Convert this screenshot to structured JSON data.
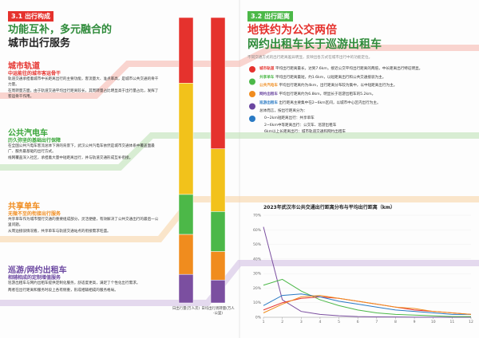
{
  "left": {
    "section_number": "3.1",
    "section_title": "出行构成",
    "headline": [
      "功能互补，多元融合的",
      "城市出行服务"
    ],
    "blocks": [
      {
        "title": "城市轨道",
        "subtitle": "中运能往的城市客运骨干",
        "paragraphs": [
          "轨道交通承担着城市中长距离出行的主要功能，客流量大、准点率高，是城市公共交通的骨干力量。",
          "在周转量方面，由于轨道交通平均出行距离较长，其周转量占比明显高于出行量占比，发挥了客运骨干作用。"
        ]
      },
      {
        "title": "公共汽电车",
        "subtitle": "历久弥坚的基础出行保障",
        "paragraphs": [
          "在全国公共汽电车客流总体下滑的背景下，武汉公共汽电车依然是城市交通体系中覆盖面最广、服务最基础的出行方式。",
          "线网覆盖深入社区，承担着大量中短距离出行，并与轨道交通形成互补衔接。"
        ]
      },
      {
        "title": "共享单车",
        "subtitle": "无微不至的衔接出行服务",
        "paragraphs": [
          "共享单车作为城市慢行交通的重要组成部分，灵活便捷，有效解决了公共交通出行的最后一公里问题。",
          "从周边接驳情况看，共享单车与轨道交通站点的衔接需求旺盛。"
        ]
      },
      {
        "title": "巡游/网约出租车",
        "subtitle": "相辅相成的定制增值服务",
        "paragraphs": [
          "巡游出租车与网约出租车提供定制化服务，舒适度更高，满足了个性化出行需求。",
          "两者在出行距离和服务时段上各有侧重，形成相辅相成的服务格局。"
        ]
      }
    ]
  },
  "right": {
    "section_number": "3.2",
    "section_title": "出行距离",
    "headline": [
      "地铁约为公交两倍",
      "网约出租车长于巡游出租车"
    ],
    "intro": "不同交通方式的出行距离差异明显，反映出各方式在城市出行中的功能定位。",
    "paragraphs": [
      {
        "lead": "城市轨道",
        "text": "平均出行距离最长，达到7.6km，接近公交平均出行距离的两倍，中长距离出行特征明显。"
      },
      {
        "lead": "共享单车",
        "text": "平均出行距离最短，约1.6km，以短距离出行和公共交通接驳为主。"
      },
      {
        "lead": "公共汽电车",
        "text": "平均出行距离约为4km，出行距离分布较为集中，以中短距离出行为主。"
      },
      {
        "lead": "网约出租车",
        "text": "平均出行距离约为6.8km，明显长于巡游出租车的5.2km。"
      },
      {
        "lead": "巡游出租车",
        "text": "出行距离主要集中在2~6km区间，以城市中心区内出行为主。"
      }
    ],
    "summary": "总体而言，按出行距离分为：",
    "bullets": [
      "0~2km短距离出行：共享单车",
      "2~6km中等距离出行：公交车、巡游出租车",
      "6km以上长距离出行：城市轨道交通和网约出租车"
    ]
  },
  "chart_data": [
    {
      "type": "stacked_bar",
      "categories": [
        "日出行量(万人次)",
        "日均出行周转量(万人·公里)"
      ],
      "ylim": [
        0,
        100
      ],
      "series": [
        {
          "color": "#e5322d",
          "values": [
            23,
            46
          ]
        },
        {
          "color": "#f2c21b",
          "values": [
            39,
            22
          ]
        },
        {
          "color": "#4cb848",
          "values": [
            14,
            14
          ]
        },
        {
          "color": "#f08c1e",
          "values": [
            14,
            10
          ]
        },
        {
          "color": "#7b4fa0",
          "values": [
            10,
            8
          ]
        }
      ]
    },
    {
      "type": "line",
      "title": "2023年武汉市公共交通出行距离分布与平均出行距离（km）",
      "x": [
        1,
        2,
        3,
        4,
        5,
        6,
        7,
        8,
        9,
        10,
        11,
        12
      ],
      "xlim": [
        1,
        12
      ],
      "xticks": [
        1,
        2,
        3,
        4,
        5,
        6,
        7,
        8,
        9,
        10,
        11,
        12
      ],
      "ylim": [
        0,
        70
      ],
      "yticks": [
        {
          "value": 0,
          "label": "0%"
        },
        {
          "value": 10,
          "label": "10%"
        },
        {
          "value": 20,
          "label": "20%"
        },
        {
          "value": 30,
          "label": "30%"
        },
        {
          "value": 40,
          "label": "40%"
        },
        {
          "value": 50,
          "label": "50%"
        },
        {
          "value": 60,
          "label": "60%"
        },
        {
          "value": 70,
          "label": "70%"
        }
      ],
      "series": [
        {
          "color": "#7b4fa0",
          "values": [
            62,
            12,
            4,
            2,
            1,
            0.5,
            0.3,
            0.2,
            0.1,
            0.1,
            0,
            0
          ]
        },
        {
          "color": "#4cb848",
          "values": [
            22,
            26,
            18,
            12,
            8,
            5,
            3,
            2,
            1.5,
            1,
            0.5,
            0.5
          ]
        },
        {
          "color": "#e5322d",
          "values": [
            5,
            10,
            13,
            14,
            13,
            11,
            9,
            7,
            5,
            4,
            3,
            2
          ]
        },
        {
          "color": "#2a7ac4",
          "values": [
            8,
            15,
            16,
            14,
            11,
            9,
            7,
            5,
            4,
            3,
            2,
            2
          ]
        },
        {
          "color": "#f08c1e",
          "values": [
            3,
            9,
            14,
            15,
            13,
            11,
            9,
            7,
            6,
            4,
            3,
            2
          ]
        }
      ]
    }
  ]
}
